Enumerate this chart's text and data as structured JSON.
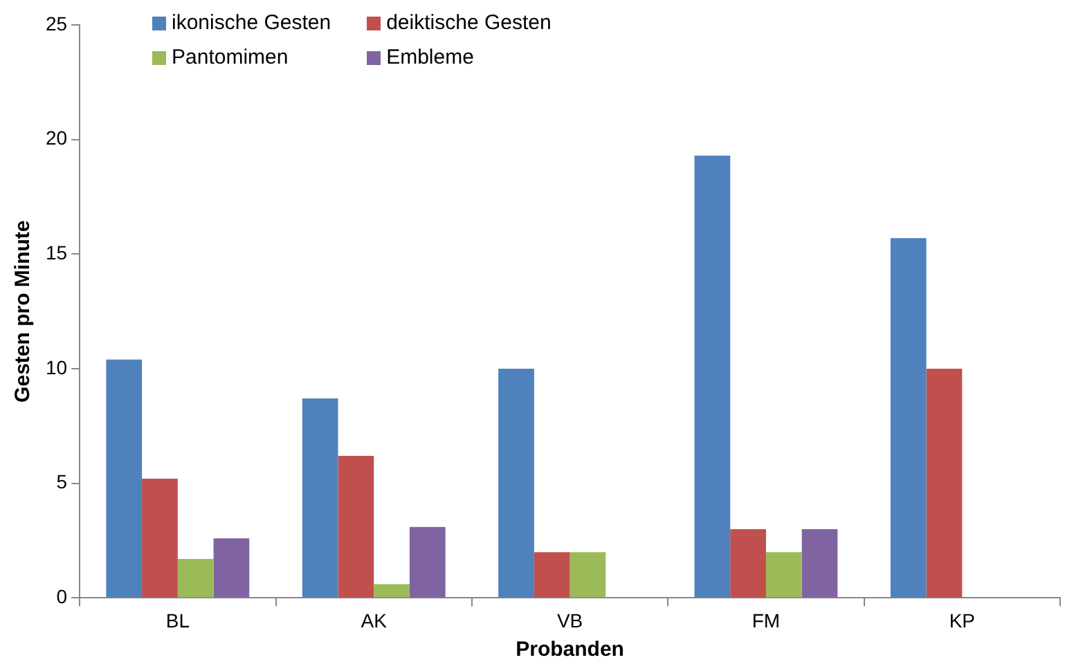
{
  "chart_data": {
    "type": "bar",
    "xlabel": "Probanden",
    "ylabel": "Gesten pro Minute",
    "categories": [
      "BL",
      "AK",
      "VB",
      "FM",
      "KP"
    ],
    "series": [
      {
        "name": "ikonische Gesten",
        "color": "#4f81bd",
        "values": [
          10.4,
          8.7,
          10.0,
          19.3,
          15.7
        ]
      },
      {
        "name": "deiktische Gesten",
        "color": "#c0504d",
        "values": [
          5.2,
          6.2,
          2.0,
          3.0,
          10.0
        ]
      },
      {
        "name": "Pantomimen",
        "color": "#9bbb59",
        "values": [
          1.7,
          0.6,
          2.0,
          2.0,
          0
        ]
      },
      {
        "name": "Embleme",
        "color": "#8064a2",
        "values": [
          2.6,
          3.1,
          0,
          3.0,
          0
        ]
      }
    ],
    "ylim": [
      0,
      25
    ],
    "yticks": [
      0,
      5,
      10,
      15,
      20,
      25
    ],
    "grid": false,
    "legend": "top left"
  }
}
